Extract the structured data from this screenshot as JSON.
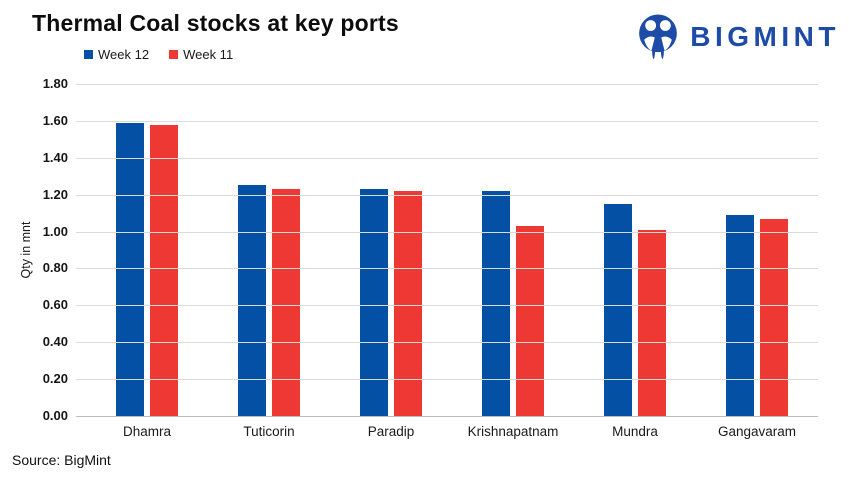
{
  "page": {
    "background": "#ffffff"
  },
  "header": {
    "title": "Thermal Coal stocks at key ports",
    "logo": {
      "text": "BIGMINT",
      "color": "#1e4ba8"
    }
  },
  "legend": [
    {
      "label": "Week 12",
      "color": "#0450a4"
    },
    {
      "label": "Week 11",
      "color": "#ee3833"
    }
  ],
  "footer": {
    "source": "Source: BigMint"
  },
  "chart_data": {
    "type": "bar",
    "title": "Thermal Coal stocks at key ports",
    "categories": [
      "Dhamra",
      "Tuticorin",
      "Paradip",
      "Krishnapatnam",
      "Mundra",
      "Gangavaram"
    ],
    "series": [
      {
        "name": "Week 12",
        "color": "#0450a4",
        "values": [
          1.59,
          1.25,
          1.23,
          1.22,
          1.15,
          1.09
        ]
      },
      {
        "name": "Week 11",
        "color": "#ee3833",
        "values": [
          1.58,
          1.23,
          1.22,
          1.03,
          1.01,
          1.07
        ]
      }
    ],
    "xlabel": "",
    "ylabel": "Qty in mnt",
    "ylim": [
      0,
      1.8
    ],
    "ytick_step": 0.2,
    "ytick_labels": [
      "0.00",
      "0.20",
      "0.40",
      "0.60",
      "0.80",
      "1.00",
      "1.20",
      "1.40",
      "1.60",
      "1.80"
    ],
    "grid": true,
    "legend_position": "top-left",
    "gridline_color": "#dadada",
    "axis_line_color": "#bdbdbd"
  }
}
